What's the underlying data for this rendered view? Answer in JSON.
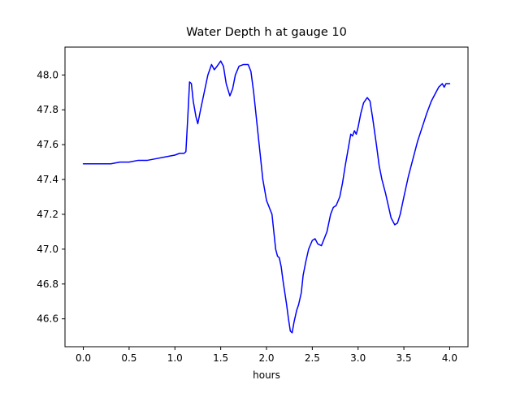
{
  "chart_data": {
    "type": "line",
    "title": "Water Depth h at gauge 10",
    "xlabel": "hours",
    "ylabel": "",
    "grid": false,
    "legend": "none",
    "line_color": "#0000ff",
    "line_width": 1.5,
    "xlim": [
      -0.2,
      4.2
    ],
    "ylim": [
      46.44,
      48.16
    ],
    "xticks": {
      "values": [
        0.0,
        0.5,
        1.0,
        1.5,
        2.0,
        2.5,
        3.0,
        3.5,
        4.0
      ],
      "labels": [
        "0.0",
        "0.5",
        "1.0",
        "1.5",
        "2.0",
        "2.5",
        "3.0",
        "3.5",
        "4.0"
      ]
    },
    "yticks": {
      "values": [
        46.6,
        46.8,
        47.0,
        47.2,
        47.4,
        47.6,
        47.8,
        48.0
      ],
      "labels": [
        "46.6",
        "46.8",
        "47.0",
        "47.2",
        "47.4",
        "47.6",
        "47.8",
        "48.0"
      ]
    },
    "series": [
      {
        "name": "water-depth-h",
        "x": [
          0.0,
          0.1,
          0.2,
          0.3,
          0.4,
          0.5,
          0.6,
          0.7,
          0.8,
          0.9,
          1.0,
          1.05,
          1.1,
          1.12,
          1.14,
          1.16,
          1.18,
          1.2,
          1.23,
          1.25,
          1.28,
          1.32,
          1.36,
          1.4,
          1.43,
          1.46,
          1.5,
          1.53,
          1.56,
          1.6,
          1.63,
          1.66,
          1.7,
          1.75,
          1.8,
          1.83,
          1.86,
          1.9,
          1.93,
          1.96,
          2.0,
          2.03,
          2.06,
          2.08,
          2.1,
          2.12,
          2.14,
          2.16,
          2.18,
          2.2,
          2.22,
          2.24,
          2.26,
          2.28,
          2.3,
          2.33,
          2.35,
          2.38,
          2.4,
          2.43,
          2.46,
          2.5,
          2.53,
          2.56,
          2.6,
          2.63,
          2.66,
          2.7,
          2.73,
          2.76,
          2.8,
          2.83,
          2.86,
          2.9,
          2.92,
          2.94,
          2.96,
          2.98,
          3.0,
          3.03,
          3.06,
          3.1,
          3.13,
          3.16,
          3.2,
          3.23,
          3.26,
          3.3,
          3.33,
          3.36,
          3.4,
          3.43,
          3.46,
          3.5,
          3.55,
          3.6,
          3.65,
          3.7,
          3.75,
          3.8,
          3.85,
          3.88,
          3.9,
          3.92,
          3.94,
          3.96,
          3.98,
          4.0
        ],
        "y": [
          47.49,
          47.49,
          47.49,
          47.49,
          47.5,
          47.5,
          47.51,
          47.51,
          47.52,
          47.53,
          47.54,
          47.55,
          47.55,
          47.56,
          47.75,
          47.96,
          47.95,
          47.85,
          47.76,
          47.72,
          47.8,
          47.9,
          48.0,
          48.06,
          48.03,
          48.05,
          48.08,
          48.05,
          47.95,
          47.88,
          47.92,
          48.0,
          48.05,
          48.06,
          48.06,
          48.02,
          47.9,
          47.7,
          47.55,
          47.4,
          47.28,
          47.24,
          47.2,
          47.1,
          47.0,
          46.96,
          46.95,
          46.9,
          46.82,
          46.75,
          46.68,
          46.6,
          46.53,
          46.52,
          46.58,
          46.65,
          46.68,
          46.75,
          46.85,
          46.93,
          47.0,
          47.05,
          47.06,
          47.03,
          47.02,
          47.06,
          47.1,
          47.2,
          47.24,
          47.25,
          47.3,
          47.38,
          47.48,
          47.6,
          47.66,
          47.65,
          47.68,
          47.66,
          47.7,
          47.78,
          47.84,
          47.87,
          47.85,
          47.75,
          47.6,
          47.48,
          47.4,
          47.32,
          47.25,
          47.18,
          47.14,
          47.15,
          47.2,
          47.3,
          47.42,
          47.52,
          47.62,
          47.7,
          47.78,
          47.85,
          47.9,
          47.93,
          47.94,
          47.95,
          47.93,
          47.95,
          47.95,
          47.95
        ]
      }
    ]
  }
}
